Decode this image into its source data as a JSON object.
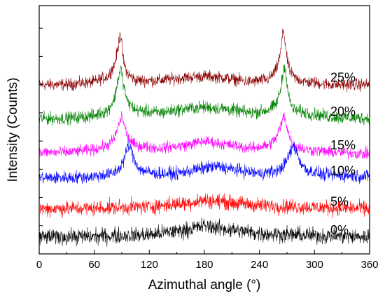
{
  "chart_data": {
    "type": "line",
    "title": "",
    "xlabel": "Azimuthal angle (°)",
    "ylabel": "Intensity (Counts)",
    "xlim": [
      0,
      360
    ],
    "xticks": [
      "0",
      "60",
      "120",
      "180",
      "240",
      "300",
      "360"
    ],
    "yticks_labeled": false,
    "grid": false,
    "legend": "none",
    "series": [
      {
        "name": "25%",
        "color": "#8B0000",
        "baseline": 6.0,
        "x": [
          0,
          30,
          60,
          75,
          82,
          86,
          88,
          90,
          92,
          96,
          105,
          130,
          160,
          180,
          200,
          230,
          250,
          258,
          263,
          266,
          268,
          270,
          273,
          278,
          290,
          320,
          360
        ],
        "y": [
          6.0,
          6.0,
          6.1,
          6.3,
          6.7,
          7.3,
          7.9,
          7.4,
          6.8,
          6.4,
          6.15,
          6.15,
          6.25,
          6.3,
          6.25,
          6.1,
          6.2,
          6.5,
          7.1,
          8.0,
          7.5,
          6.9,
          6.5,
          6.25,
          6.1,
          6.0,
          6.0
        ]
      },
      {
        "name": "20%",
        "color": "#008000",
        "baseline": 4.8,
        "x": [
          0,
          30,
          60,
          75,
          82,
          86,
          89,
          92,
          96,
          105,
          130,
          160,
          180,
          200,
          230,
          250,
          258,
          263,
          266,
          268,
          270,
          273,
          278,
          290,
          320,
          360
        ],
        "y": [
          4.8,
          4.8,
          4.9,
          5.1,
          5.5,
          6.2,
          6.6,
          6.0,
          5.4,
          5.1,
          5.0,
          5.15,
          5.2,
          5.15,
          5.0,
          5.1,
          5.3,
          5.8,
          6.5,
          6.7,
          6.0,
          5.4,
          5.1,
          5.0,
          4.85,
          4.8
        ]
      },
      {
        "name": "15%",
        "color": "#FF00FF",
        "baseline": 3.6,
        "x": [
          0,
          30,
          60,
          75,
          82,
          86,
          90,
          94,
          98,
          105,
          130,
          160,
          180,
          200,
          230,
          250,
          258,
          263,
          267,
          270,
          273,
          278,
          290,
          320,
          360
        ],
        "y": [
          3.6,
          3.6,
          3.7,
          3.85,
          4.1,
          4.5,
          4.9,
          4.4,
          4.05,
          3.85,
          3.75,
          3.85,
          4.0,
          3.9,
          3.75,
          3.85,
          4.1,
          4.5,
          4.95,
          4.5,
          4.1,
          3.85,
          3.7,
          3.6,
          3.55
        ]
      },
      {
        "name": "10%",
        "color": "#0000FF",
        "baseline": 2.7,
        "x": [
          0,
          30,
          60,
          80,
          88,
          93,
          97,
          100,
          104,
          110,
          125,
          150,
          180,
          195,
          210,
          240,
          260,
          268,
          273,
          277,
          280,
          284,
          290,
          310,
          360
        ],
        "y": [
          2.7,
          2.7,
          2.75,
          2.85,
          3.05,
          3.4,
          3.85,
          3.7,
          3.3,
          3.0,
          2.85,
          2.85,
          3.05,
          3.1,
          3.0,
          2.85,
          2.95,
          3.2,
          3.55,
          3.85,
          3.65,
          3.3,
          3.0,
          2.8,
          2.75
        ]
      },
      {
        "name": "5%",
        "color": "#FF0000",
        "baseline": 1.6,
        "x": [
          0,
          60,
          120,
          160,
          180,
          200,
          240,
          300,
          360
        ],
        "y": [
          1.6,
          1.62,
          1.68,
          1.8,
          1.9,
          1.85,
          1.72,
          1.65,
          1.6
        ]
      },
      {
        "name": "0%",
        "color": "#000000",
        "baseline": 0.6,
        "x": [
          0,
          60,
          120,
          160,
          180,
          200,
          240,
          300,
          360
        ],
        "y": [
          0.6,
          0.62,
          0.68,
          0.85,
          1.0,
          0.9,
          0.72,
          0.65,
          0.6
        ]
      }
    ]
  }
}
